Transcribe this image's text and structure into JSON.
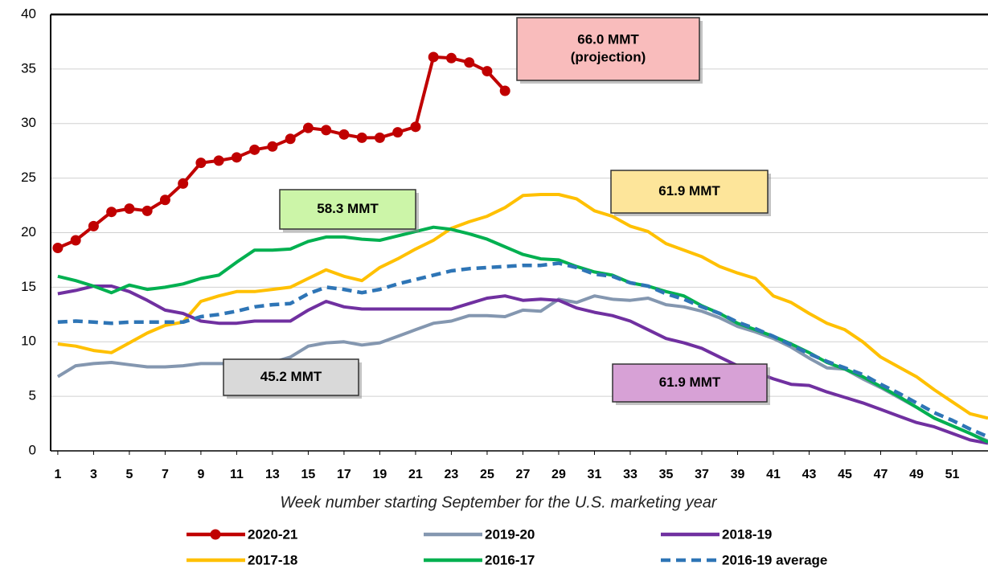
{
  "chart_data": {
    "type": "line",
    "x_label": "Week number starting September for the U.S. marketing year",
    "x": [
      1,
      2,
      3,
      4,
      5,
      6,
      7,
      8,
      9,
      10,
      11,
      12,
      13,
      14,
      15,
      16,
      17,
      18,
      19,
      20,
      21,
      22,
      23,
      24,
      25,
      26,
      27,
      28,
      29,
      30,
      31,
      32,
      33,
      34,
      35,
      36,
      37,
      38,
      39,
      40,
      41,
      42,
      43,
      44,
      45,
      46,
      47,
      48,
      49,
      50,
      51,
      52,
      53
    ],
    "xlim": [
      0.6,
      53
    ],
    "xticks": [
      1,
      3,
      5,
      7,
      9,
      11,
      13,
      15,
      17,
      19,
      21,
      23,
      25,
      27,
      29,
      31,
      33,
      35,
      37,
      39,
      41,
      43,
      45,
      47,
      49,
      51
    ],
    "ylim": [
      0,
      40
    ],
    "yticks": [
      0,
      5,
      10,
      15,
      20,
      25,
      30,
      35,
      40
    ],
    "grid": true,
    "series": [
      {
        "name": "2020-21",
        "color": "#c00000",
        "marker": "circle",
        "values": [
          18.6,
          19.3,
          20.6,
          21.9,
          22.2,
          22.0,
          23.0,
          24.5,
          26.4,
          26.6,
          26.9,
          27.6,
          27.9,
          28.6,
          29.6,
          29.4,
          29.0,
          28.7,
          28.7,
          29.2,
          29.7,
          36.1,
          36.0,
          35.6,
          34.8,
          33.0,
          null,
          null,
          null,
          null,
          null,
          null,
          null,
          null,
          null,
          null,
          null,
          null,
          null,
          null,
          null,
          null,
          null,
          null,
          null,
          null,
          null,
          null,
          null,
          null,
          null,
          null,
          null
        ]
      },
      {
        "name": "2019-20",
        "color": "#8497b0",
        "values": [
          6.8,
          7.8,
          8.0,
          8.1,
          7.9,
          7.7,
          7.7,
          7.8,
          8.0,
          8.0,
          8.0,
          8.0,
          8.1,
          8.6,
          9.6,
          9.9,
          10.0,
          9.7,
          9.9,
          10.5,
          11.1,
          11.7,
          11.9,
          12.4,
          12.4,
          12.3,
          12.9,
          12.8,
          13.9,
          13.6,
          14.2,
          13.9,
          13.8,
          14.0,
          13.4,
          13.2,
          12.8,
          12.2,
          11.4,
          10.9,
          10.3,
          9.5,
          8.5,
          7.6,
          7.5,
          6.6,
          5.8,
          4.9,
          4.0,
          3.0,
          2.3,
          1.6,
          0.9
        ]
      },
      {
        "name": "2018-19",
        "color": "#7030a0",
        "values": [
          14.4,
          14.7,
          15.1,
          15.1,
          14.6,
          13.8,
          12.9,
          12.6,
          11.9,
          11.7,
          11.7,
          11.9,
          11.9,
          11.9,
          12.9,
          13.7,
          13.2,
          13.0,
          13.0,
          13.0,
          13.0,
          13.0,
          13.0,
          13.5,
          14.0,
          14.2,
          13.8,
          13.9,
          13.8,
          13.1,
          12.7,
          12.4,
          11.9,
          11.1,
          10.3,
          9.9,
          9.4,
          8.6,
          7.8,
          7.2,
          6.6,
          6.1,
          6.0,
          5.4,
          4.9,
          4.4,
          3.8,
          3.2,
          2.6,
          2.2,
          1.6,
          1.0,
          0.7
        ]
      },
      {
        "name": "2017-18",
        "color": "#ffc000",
        "values": [
          9.8,
          9.6,
          9.2,
          9.0,
          9.9,
          10.8,
          11.5,
          11.8,
          13.7,
          14.2,
          14.6,
          14.6,
          14.8,
          15.0,
          15.8,
          16.6,
          16.0,
          15.6,
          16.8,
          17.6,
          18.5,
          19.3,
          20.4,
          21.0,
          21.5,
          22.3,
          23.4,
          23.5,
          23.5,
          23.1,
          22.0,
          21.5,
          20.6,
          20.1,
          19.0,
          18.4,
          17.8,
          16.9,
          16.3,
          15.8,
          14.2,
          13.6,
          12.6,
          11.7,
          11.1,
          10.0,
          8.6,
          7.7,
          6.8,
          5.6,
          4.5,
          3.4,
          3.0
        ]
      },
      {
        "name": "2016-17",
        "color": "#00b050",
        "values": [
          16.0,
          15.6,
          15.1,
          14.5,
          15.2,
          14.8,
          15.0,
          15.3,
          15.8,
          16.1,
          17.3,
          18.4,
          18.4,
          18.5,
          19.2,
          19.6,
          19.6,
          19.4,
          19.3,
          19.7,
          20.1,
          20.5,
          20.3,
          19.9,
          19.4,
          18.7,
          18.0,
          17.6,
          17.5,
          16.9,
          16.4,
          16.1,
          15.4,
          15.1,
          14.6,
          14.2,
          13.3,
          12.6,
          11.7,
          11.1,
          10.5,
          9.8,
          9.0,
          8.1,
          7.5,
          6.8,
          5.9,
          5.0,
          4.0,
          3.0,
          2.3,
          1.6,
          0.8
        ]
      },
      {
        "name": "2016-19 average",
        "color": "#2e75b6",
        "dash": true,
        "values": [
          11.8,
          11.9,
          11.8,
          11.7,
          11.8,
          11.8,
          11.8,
          11.8,
          12.3,
          12.5,
          12.8,
          13.2,
          13.4,
          13.5,
          14.4,
          15.0,
          14.8,
          14.5,
          14.8,
          15.3,
          15.7,
          16.1,
          16.5,
          16.7,
          16.8,
          16.9,
          17.0,
          17.0,
          17.2,
          16.8,
          16.2,
          16.0,
          15.4,
          15.1,
          14.4,
          13.9,
          13.2,
          12.6,
          11.8,
          11.2,
          10.5,
          9.7,
          8.9,
          8.2,
          7.6,
          7.0,
          6.1,
          5.3,
          4.4,
          3.5,
          2.8,
          2.0,
          1.3
        ]
      }
    ],
    "annotations": [
      {
        "lines": [
          "66.0 MMT",
          "(projection)"
        ],
        "color": "#f9bcbc"
      },
      {
        "lines": [
          "58.3 MMT"
        ],
        "color": "#ccf5a8"
      },
      {
        "lines": [
          "61.9 MMT"
        ],
        "color": "#fde59a"
      },
      {
        "lines": [
          "45.2 MMT"
        ],
        "color": "#d9d9d9"
      },
      {
        "lines": [
          "61.9 MMT"
        ],
        "color": "#d7a1d6"
      }
    ]
  }
}
